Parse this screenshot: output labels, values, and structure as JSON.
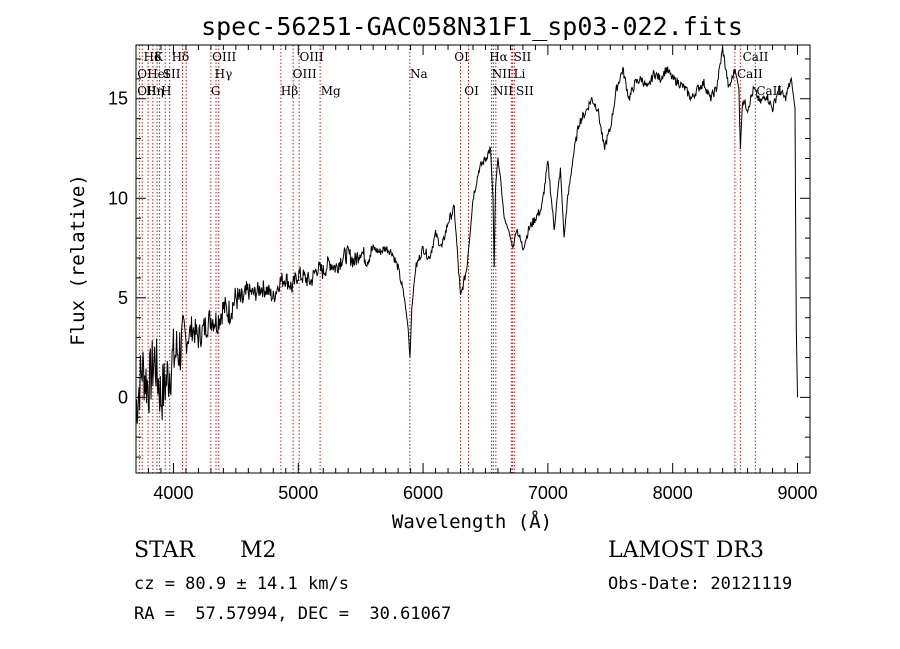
{
  "chart_data": {
    "type": "line",
    "title": "spec-56251-GAC058N31F1_sp03-022.fits",
    "xlabel": "Wavelength (Å)",
    "ylabel": "Flux (relative)",
    "xlim": [
      3700,
      9100
    ],
    "ylim": [
      -3.8,
      17.7
    ],
    "xticks": [
      4000,
      5000,
      6000,
      7000,
      8000,
      9000
    ],
    "yticks": [
      0,
      5,
      10,
      15
    ],
    "grid": false,
    "series": [
      {
        "name": "flux",
        "x": [
          3700,
          3750,
          3800,
          3850,
          3900,
          3950,
          4000,
          4050,
          4100,
          4150,
          4200,
          4250,
          4300,
          4350,
          4400,
          4450,
          4500,
          4550,
          4600,
          4650,
          4700,
          4750,
          4800,
          4850,
          4900,
          4950,
          5000,
          5050,
          5100,
          5150,
          5200,
          5250,
          5300,
          5350,
          5400,
          5450,
          5500,
          5550,
          5600,
          5650,
          5700,
          5750,
          5800,
          5850,
          5880,
          5895,
          5910,
          5940,
          6000,
          6050,
          6100,
          6150,
          6200,
          6250,
          6300,
          6350,
          6400,
          6450,
          6500,
          6540,
          6560,
          6570,
          6580,
          6600,
          6620,
          6650,
          6680,
          6700,
          6720,
          6750,
          6800,
          6850,
          6900,
          6950,
          7000,
          7050,
          7100,
          7130,
          7150,
          7200,
          7250,
          7300,
          7350,
          7400,
          7450,
          7500,
          7550,
          7600,
          7650,
          7700,
          7750,
          7800,
          7850,
          7900,
          7950,
          8000,
          8050,
          8100,
          8150,
          8200,
          8250,
          8300,
          8350,
          8400,
          8450,
          8500,
          8530,
          8542,
          8560,
          8600,
          8650,
          8700,
          8750,
          8800,
          8850,
          8900,
          8950,
          8980,
          8990,
          9000
        ],
        "values": [
          -0.5,
          1.5,
          0.5,
          2.0,
          0.0,
          1.0,
          2.0,
          2.5,
          2.8,
          3.5,
          3.0,
          3.5,
          4.0,
          3.8,
          4.5,
          4.3,
          5.0,
          4.8,
          5.3,
          5.2,
          5.5,
          5.4,
          5.0,
          5.8,
          6.0,
          5.5,
          6.2,
          6.0,
          5.8,
          6.5,
          6.3,
          6.8,
          6.5,
          7.0,
          7.2,
          6.8,
          7.4,
          6.9,
          7.5,
          7.3,
          7.5,
          7.3,
          6.5,
          5.0,
          3.5,
          2.0,
          4.5,
          6.5,
          7.5,
          7.0,
          8.2,
          7.5,
          8.8,
          9.5,
          5.0,
          6.5,
          10.0,
          11.5,
          12.0,
          12.5,
          10.0,
          6.5,
          10.5,
          12.0,
          11.0,
          9.0,
          8.5,
          8.0,
          7.5,
          8.5,
          7.5,
          8.5,
          9.0,
          9.5,
          11.8,
          8.5,
          11.5,
          8.0,
          9.5,
          12.0,
          13.8,
          14.3,
          15.0,
          14.5,
          12.5,
          13.5,
          15.5,
          16.5,
          15.0,
          15.8,
          16.0,
          15.5,
          16.3,
          16.0,
          16.5,
          16.0,
          15.8,
          15.5,
          15.0,
          15.5,
          15.8,
          15.0,
          15.5,
          17.5,
          15.5,
          16.5,
          15.5,
          12.5,
          15.0,
          14.5,
          15.5,
          14.8,
          15.2,
          14.5,
          15.5,
          15.0,
          16.0,
          14.5,
          3.5,
          0.0
        ]
      }
    ],
    "line_markers": [
      {
        "x": 3727,
        "labels": [
          "OII"
        ]
      },
      {
        "x": 3750,
        "labels": [
          "OIII"
        ]
      },
      {
        "x": 3797,
        "labels": [
          "OII"
        ]
      },
      {
        "x": 3835,
        "labels": [
          "Hε"
        ]
      },
      {
        "x": 3869,
        "labels": [
          "Hε"
        ]
      },
      {
        "x": 3889,
        "labels": [
          "HeI"
        ]
      },
      {
        "x": 3934,
        "labels": [
          "K"
        ]
      },
      {
        "x": 3970,
        "labels": [
          "H"
        ]
      },
      {
        "x": 4073,
        "labels": [
          "SII"
        ]
      },
      {
        "x": 4102,
        "labels": [
          "Hδ"
        ]
      },
      {
        "x": 4300,
        "labels": [
          "G"
        ]
      },
      {
        "x": 4341,
        "labels": [
          "Hγ"
        ]
      },
      {
        "x": 4363,
        "labels": [
          "OIII"
        ]
      },
      {
        "x": 4861,
        "labels": [
          "Hβ"
        ]
      },
      {
        "x": 4959,
        "labels": [
          "OIII"
        ]
      },
      {
        "x": 5007,
        "labels": [
          "OIII"
        ]
      },
      {
        "x": 5175,
        "labels": [
          "Mg"
        ]
      },
      {
        "x": 5894,
        "labels": [
          "Na"
        ]
      },
      {
        "x": 6300,
        "labels": [
          "OI"
        ]
      },
      {
        "x": 6364,
        "labels": [
          "OI"
        ]
      },
      {
        "x": 6548,
        "labels": [
          "NII"
        ]
      },
      {
        "x": 6563,
        "labels": [
          "Hα"
        ]
      },
      {
        "x": 6583,
        "labels": [
          "NII"
        ]
      },
      {
        "x": 6707,
        "labels": [
          "Li"
        ]
      },
      {
        "x": 6716,
        "labels": [
          "SII"
        ]
      },
      {
        "x": 6731,
        "labels": [
          "SII"
        ]
      },
      {
        "x": 8498,
        "labels": [
          "CaII"
        ]
      },
      {
        "x": 8542,
        "labels": [
          "CaII"
        ]
      },
      {
        "x": 8662,
        "labels": [
          "CaII"
        ]
      }
    ],
    "annotations": [
      {
        "text": "Hδ",
        "x": 3760,
        "row": 1
      },
      {
        "text": "K",
        "x": 3845,
        "row": 1
      },
      {
        "text": "Hδ",
        "x": 3985,
        "row": 1
      },
      {
        "text": "OIII",
        "x": 4310,
        "row": 1
      },
      {
        "text": "OIII",
        "x": 5010,
        "row": 1
      },
      {
        "text": "OI",
        "x": 6250,
        "row": 1
      },
      {
        "text": "Hα",
        "x": 6530,
        "row": 1
      },
      {
        "text": "SII",
        "x": 6725,
        "row": 1
      },
      {
        "text": "CaII",
        "x": 8560,
        "row": 1
      },
      {
        "text": "OI",
        "x": 3710,
        "row": 2
      },
      {
        "text": "HeI",
        "x": 3790,
        "row": 2
      },
      {
        "text": "SII",
        "x": 3915,
        "row": 2
      },
      {
        "text": "Hγ",
        "x": 4330,
        "row": 2
      },
      {
        "text": "OIII",
        "x": 4955,
        "row": 2
      },
      {
        "text": "Na",
        "x": 5895,
        "row": 2
      },
      {
        "text": "NII",
        "x": 6550,
        "row": 2
      },
      {
        "text": "Li",
        "x": 6725,
        "row": 2
      },
      {
        "text": "CaII",
        "x": 8515,
        "row": 2
      },
      {
        "text": "OII",
        "x": 3710,
        "row": 3
      },
      {
        "text": "Hη",
        "x": 3780,
        "row": 3
      },
      {
        "text": "H",
        "x": 3900,
        "row": 3
      },
      {
        "text": "G",
        "x": 4300,
        "row": 3
      },
      {
        "text": "Hβ",
        "x": 4860,
        "row": 3
      },
      {
        "text": "Mg",
        "x": 5180,
        "row": 3
      },
      {
        "text": "OI",
        "x": 6330,
        "row": 3
      },
      {
        "text": "NII",
        "x": 6560,
        "row": 3
      },
      {
        "text": "SII",
        "x": 6745,
        "row": 3
      },
      {
        "text": "CaII",
        "x": 8670,
        "row": 3
      }
    ]
  },
  "info": {
    "object_class": "STAR",
    "subclass": "M2",
    "velocity": "cz = 80.9 ± 14.1 km/s",
    "coordinates": "RA =  57.57994, DEC =  30.61067",
    "survey": "LAMOST DR3",
    "obs_date": "Obs-Date: 20121119"
  },
  "colors": {
    "line_marker": "#b22222",
    "spectrum": "#000000"
  }
}
